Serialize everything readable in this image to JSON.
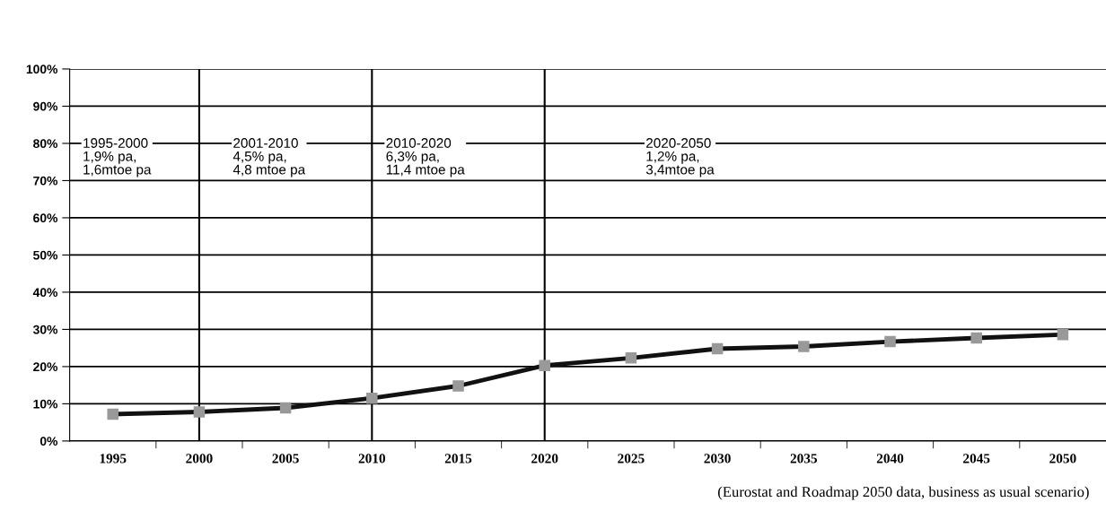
{
  "chart_data": {
    "type": "line",
    "categories": [
      "1995",
      "2000",
      "2005",
      "2010",
      "2015",
      "2020",
      "2025",
      "2030",
      "2035",
      "2040",
      "2045",
      "2050"
    ],
    "series": [
      {
        "color": "#111111",
        "values": [
          7.2,
          7.8,
          8.9,
          11.5,
          14.8,
          20.3,
          22.3,
          24.8,
          25.4,
          26.7,
          27.7,
          28.6
        ]
      }
    ],
    "ylim": [
      0,
      100
    ],
    "yticks": [
      {
        "value": 0,
        "label": "0%"
      },
      {
        "value": 10,
        "label": "10%"
      },
      {
        "value": 20,
        "label": "20%"
      },
      {
        "value": 30,
        "label": "30%"
      },
      {
        "value": 40,
        "label": "40%"
      },
      {
        "value": 50,
        "label": "50%"
      },
      {
        "value": 60,
        "label": "60%"
      },
      {
        "value": 70,
        "label": "70%"
      },
      {
        "value": 80,
        "label": "80%"
      },
      {
        "value": 90,
        "label": "90%"
      },
      {
        "value": 100,
        "label": "100%"
      }
    ],
    "grid": "y",
    "marker": "square",
    "line_style": "solid",
    "ref_lines": [
      {
        "axis": "x",
        "value": "2000",
        "color": "#000000"
      },
      {
        "axis": "x",
        "value": "2010",
        "color": "#000000"
      },
      {
        "axis": "x",
        "value": "2020",
        "color": "#000000"
      }
    ],
    "annotations": [
      "1995-2000\n1,9% pa,\n1,6mtoe pa",
      "2001-2010\n4,5% pa,\n4,8 mtoe pa",
      "2010-2020\n6,3% pa,\n11,4 mtoe pa",
      "2020-2050\n1,2% pa,\n3,4mtoe pa",
      "(Eurostat and Roadmap 2050 data, business as usual scenario)"
    ]
  }
}
